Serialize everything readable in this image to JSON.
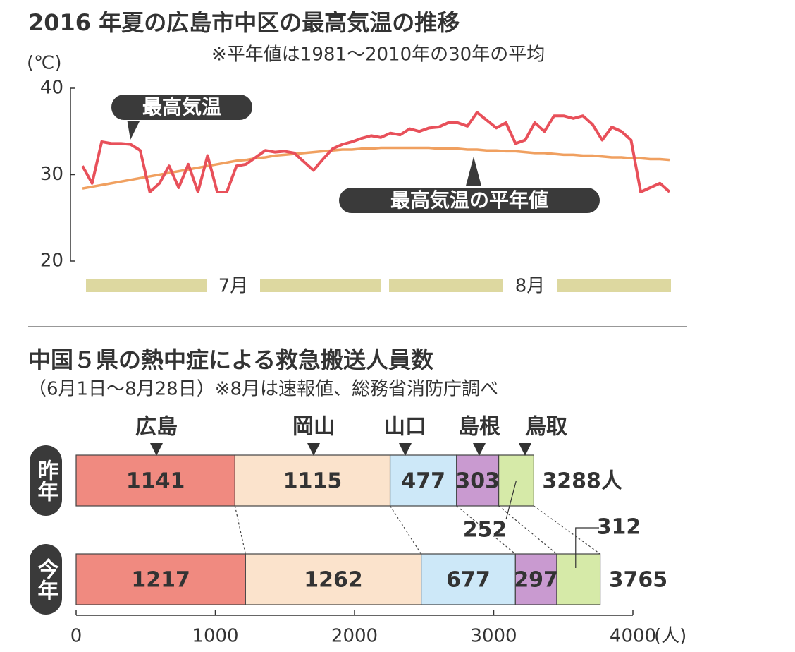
{
  "chart_data": [
    {
      "type": "line",
      "title": "2016 年夏の広島市中区の最高気温の推移",
      "note": "※平年値は1981～2010年の30年の平均",
      "y_label": "(℃)",
      "ylim": [
        20,
        40
      ],
      "yticks": [
        20,
        30,
        40
      ],
      "months": [
        "7月",
        "8月"
      ],
      "series": [
        {
          "name": "最高気温",
          "color": "#e8505a",
          "values": [
            31.0,
            29.0,
            33.8,
            33.6,
            33.6,
            33.5,
            32.8,
            28.0,
            29.0,
            31.0,
            28.5,
            31.2,
            28.0,
            32.2,
            28.0,
            28.0,
            31.0,
            31.2,
            32.0,
            32.8,
            32.6,
            32.7,
            32.5,
            31.5,
            30.5,
            31.8,
            33.0,
            33.5,
            33.8,
            34.2,
            34.5,
            34.3,
            34.8,
            34.6,
            35.3,
            35.0,
            35.4,
            35.5,
            36.0,
            36.0,
            35.6,
            37.2,
            36.3,
            35.4,
            36.0,
            33.6,
            34.0,
            36.0,
            35.0,
            36.8,
            36.8,
            36.5,
            36.8,
            35.8,
            34.0,
            35.5,
            35.0,
            34.0,
            28.0,
            28.5,
            29.0,
            28.0
          ]
        },
        {
          "name": "最高気温の平年値",
          "color": "#f0a060",
          "values": [
            28.4,
            28.6,
            28.8,
            29.0,
            29.2,
            29.4,
            29.6,
            29.8,
            30.0,
            30.2,
            30.4,
            30.6,
            30.8,
            31.0,
            31.2,
            31.4,
            31.6,
            31.7,
            31.9,
            32.0,
            32.2,
            32.3,
            32.4,
            32.5,
            32.6,
            32.7,
            32.8,
            32.9,
            32.9,
            33.0,
            33.0,
            33.1,
            33.1,
            33.1,
            33.1,
            33.1,
            33.1,
            33.0,
            33.0,
            33.0,
            32.9,
            32.9,
            32.8,
            32.8,
            32.7,
            32.7,
            32.6,
            32.5,
            32.5,
            32.4,
            32.3,
            32.3,
            32.2,
            32.2,
            32.1,
            32.0,
            32.0,
            31.9,
            31.9,
            31.8,
            31.8,
            31.7
          ]
        }
      ]
    },
    {
      "type": "stacked_bar",
      "title": "中国５県の熱中症による救急搬送人員数",
      "subtitle": "（6月1日～8月28日）※8月は速報値、総務省消防庁調べ",
      "categories": [
        "昨年",
        "今年"
      ],
      "series": [
        {
          "name": "広島",
          "color": "#f08a80",
          "values": [
            1141,
            1217
          ]
        },
        {
          "name": "岡山",
          "color": "#fbe3cc",
          "values": [
            1115,
            1262
          ]
        },
        {
          "name": "山口",
          "color": "#cde8f8",
          "values": [
            477,
            677
          ]
        },
        {
          "name": "島根",
          "color": "#c99ad0",
          "values": [
            303,
            297
          ]
        },
        {
          "name": "鳥取",
          "color": "#d6eaa8",
          "values": [
            252,
            312
          ]
        }
      ],
      "totals": [
        3288,
        3765
      ],
      "total_labels": [
        "3288人",
        "3765"
      ],
      "xlim": [
        0,
        4000
      ],
      "xticks": [
        0,
        1000,
        2000,
        3000,
        4000
      ],
      "x_label": "(人)"
    }
  ]
}
